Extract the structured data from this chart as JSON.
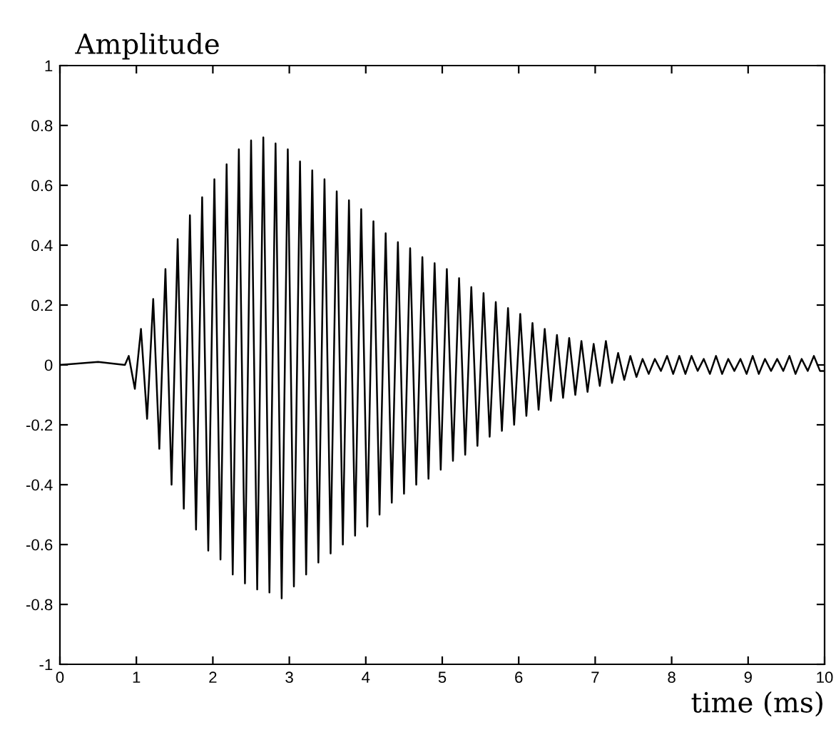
{
  "chart_data": {
    "type": "line",
    "xlabel": "time (ms)",
    "ylabel": "Amplitude",
    "xlim": [
      0,
      10
    ],
    "ylim": [
      -1,
      1
    ],
    "xticks": [
      0,
      1,
      2,
      3,
      4,
      5,
      6,
      7,
      8,
      9,
      10
    ],
    "yticks": [
      -1,
      -0.8,
      -0.6,
      -0.4,
      -0.2,
      0,
      0.2,
      0.4,
      0.6,
      0.8,
      1
    ],
    "grid": false,
    "legend": false,
    "marker": "none",
    "line_style": "solid",
    "series": [
      {
        "color": "#000000",
        "x": [
          0,
          0.5,
          0.85,
          0.9,
          0.98,
          1.06,
          1.14,
          1.22,
          1.3,
          1.38,
          1.46,
          1.54,
          1.62,
          1.7,
          1.78,
          1.86,
          1.94,
          2.02,
          2.1,
          2.18,
          2.26,
          2.34,
          2.42,
          2.5,
          2.58,
          2.66,
          2.74,
          2.82,
          2.9,
          2.98,
          3.06,
          3.14,
          3.22,
          3.3,
          3.38,
          3.46,
          3.54,
          3.62,
          3.7,
          3.78,
          3.86,
          3.94,
          4.02,
          4.1,
          4.18,
          4.26,
          4.34,
          4.42,
          4.5,
          4.58,
          4.66,
          4.74,
          4.82,
          4.9,
          4.98,
          5.06,
          5.14,
          5.22,
          5.3,
          5.38,
          5.46,
          5.54,
          5.62,
          5.7,
          5.78,
          5.86,
          5.94,
          6.02,
          6.1,
          6.18,
          6.26,
          6.34,
          6.42,
          6.5,
          6.58,
          6.66,
          6.74,
          6.82,
          6.9,
          6.98,
          7.06,
          7.14,
          7.22,
          7.3,
          7.38,
          7.46,
          7.54,
          7.62,
          7.7,
          7.78,
          7.86,
          7.94,
          8.02,
          8.1,
          8.18,
          8.26,
          8.34,
          8.42,
          8.5,
          8.58,
          8.66,
          8.74,
          8.82,
          8.9,
          8.98,
          9.06,
          9.14,
          9.22,
          9.3,
          9.38,
          9.46,
          9.54,
          9.62,
          9.7,
          9.78,
          9.86,
          9.94,
          10
        ],
        "values": [
          0.0,
          0.01,
          0.0,
          0.03,
          -0.08,
          0.12,
          -0.18,
          0.22,
          -0.28,
          0.32,
          -0.4,
          0.42,
          -0.48,
          0.5,
          -0.55,
          0.56,
          -0.62,
          0.62,
          -0.65,
          0.67,
          -0.7,
          0.72,
          -0.73,
          0.75,
          -0.75,
          0.76,
          -0.76,
          0.74,
          -0.78,
          0.72,
          -0.74,
          0.68,
          -0.7,
          0.65,
          -0.66,
          0.62,
          -0.63,
          0.58,
          -0.6,
          0.55,
          -0.57,
          0.52,
          -0.54,
          0.48,
          -0.5,
          0.44,
          -0.46,
          0.41,
          -0.43,
          0.39,
          -0.4,
          0.36,
          -0.38,
          0.34,
          -0.35,
          0.32,
          -0.32,
          0.29,
          -0.3,
          0.26,
          -0.27,
          0.24,
          -0.24,
          0.21,
          -0.22,
          0.19,
          -0.2,
          0.17,
          -0.17,
          0.14,
          -0.15,
          0.12,
          -0.12,
          0.1,
          -0.11,
          0.09,
          -0.1,
          0.08,
          -0.09,
          0.07,
          -0.07,
          0.08,
          -0.06,
          0.04,
          -0.05,
          0.03,
          -0.04,
          0.02,
          -0.03,
          0.02,
          -0.02,
          0.03,
          -0.03,
          0.03,
          -0.03,
          0.03,
          -0.02,
          0.02,
          -0.03,
          0.03,
          -0.03,
          0.02,
          -0.02,
          0.02,
          -0.03,
          0.03,
          -0.03,
          0.02,
          -0.02,
          0.02,
          -0.02,
          0.03,
          -0.03,
          0.02,
          -0.02,
          0.03,
          -0.02,
          -0.02
        ]
      }
    ]
  }
}
